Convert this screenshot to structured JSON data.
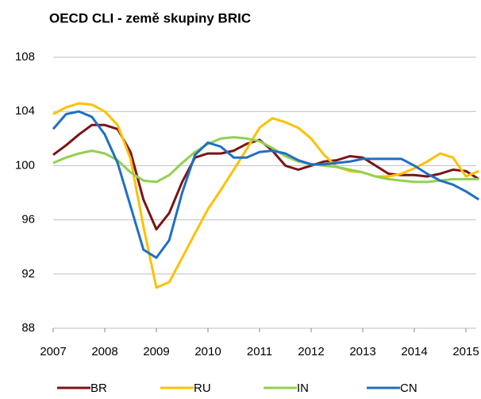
{
  "chart_data": {
    "type": "line",
    "title": "OECD CLI - země skupiny BRIC",
    "x": [
      2007,
      2007.25,
      2007.5,
      2007.75,
      2008,
      2008.25,
      2008.5,
      2008.75,
      2009,
      2009.25,
      2009.5,
      2009.75,
      2010,
      2010.25,
      2010.5,
      2010.75,
      2011,
      2011.25,
      2011.5,
      2011.75,
      2012,
      2012.25,
      2012.5,
      2012.75,
      2013,
      2013.25,
      2013.5,
      2013.75,
      2014,
      2014.25,
      2014.5,
      2014.75,
      2015,
      2015.25
    ],
    "series": [
      {
        "name": "BR",
        "color": "#7b1416",
        "values": [
          100.8,
          101.5,
          102.3,
          103.0,
          103.0,
          102.7,
          101.0,
          97.5,
          95.3,
          96.5,
          98.8,
          100.6,
          100.9,
          100.9,
          101.1,
          101.6,
          101.9,
          101.1,
          100.0,
          99.7,
          100.0,
          100.3,
          100.4,
          100.7,
          100.6,
          100.0,
          99.4,
          99.3,
          99.3,
          99.2,
          99.4,
          99.7,
          99.6,
          99.0
        ]
      },
      {
        "name": "RU",
        "color": "#ffc000",
        "values": [
          103.8,
          104.3,
          104.6,
          104.5,
          104.0,
          103.0,
          100.5,
          95.5,
          91.0,
          91.4,
          93.2,
          95.0,
          96.8,
          98.2,
          99.7,
          101.2,
          102.8,
          103.5,
          103.2,
          102.8,
          102.0,
          100.8,
          99.9,
          99.6,
          99.5,
          99.2,
          99.2,
          99.4,
          99.8,
          100.3,
          100.9,
          100.6,
          99.2,
          99.6
        ]
      },
      {
        "name": "IN",
        "color": "#92d050",
        "values": [
          100.2,
          100.6,
          100.9,
          101.1,
          100.9,
          100.4,
          99.5,
          98.9,
          98.8,
          99.3,
          100.2,
          101.0,
          101.6,
          102.0,
          102.1,
          102.0,
          101.8,
          101.3,
          100.7,
          100.3,
          100.1,
          100.0,
          99.9,
          99.7,
          99.5,
          99.2,
          99.0,
          98.9,
          98.8,
          98.8,
          98.9,
          99.0,
          99.0,
          99.0
        ]
      },
      {
        "name": "CN",
        "color": "#1f6fc5",
        "values": [
          102.7,
          103.8,
          104.0,
          103.6,
          102.3,
          100.2,
          97.0,
          93.8,
          93.2,
          94.5,
          98.0,
          100.8,
          101.7,
          101.4,
          100.6,
          100.6,
          101.0,
          101.1,
          100.9,
          100.4,
          100.1,
          100.1,
          100.2,
          100.3,
          100.5,
          100.5,
          100.5,
          100.5,
          100.0,
          99.4,
          98.9,
          98.6,
          98.1,
          97.5
        ]
      }
    ],
    "xlim": [
      2007,
      2015.2
    ],
    "xticks": [
      2007,
      2008,
      2009,
      2010,
      2011,
      2012,
      2013,
      2014,
      2015
    ],
    "ylim": [
      88,
      108
    ],
    "yticks": [
      88,
      92,
      96,
      100,
      104,
      108
    ],
    "grid": true
  }
}
